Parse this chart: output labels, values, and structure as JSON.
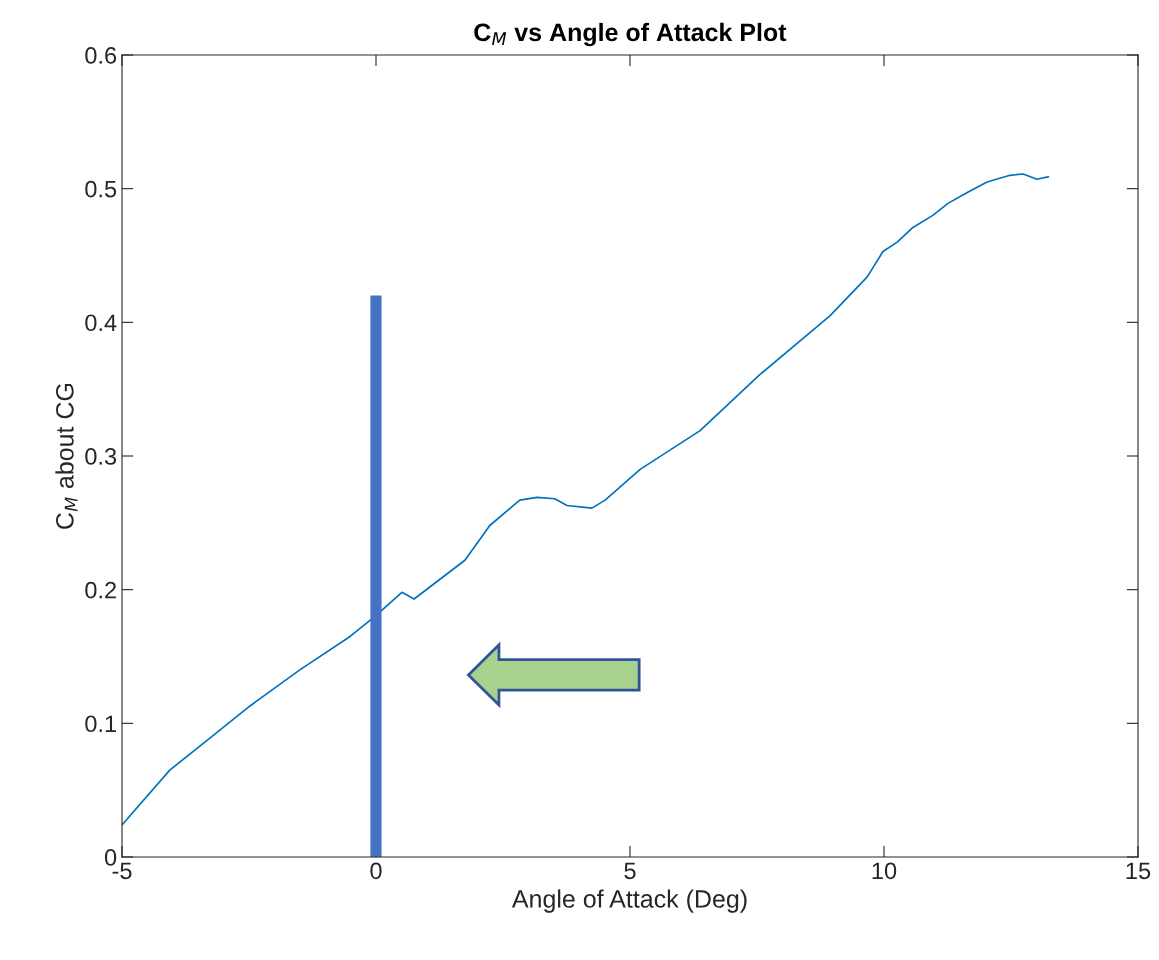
{
  "chart_data": {
    "type": "line",
    "title": "C$_{M}$ vs Angle of Attack Plot",
    "xlabel": "Angle of Attack (Deg)",
    "ylabel": "C$_{M}$ about CG",
    "series": [
      {
        "color": "#0072bd",
        "x": [
          -5,
          -4.06,
          -3.27,
          -2.48,
          -1.5,
          -0.51,
          -0.02,
          0.51,
          0.75,
          1.75,
          2.24,
          2.83,
          3.17,
          3.52,
          3.76,
          4.25,
          4.51,
          5.2,
          6.38,
          7.56,
          8.94,
          9.67,
          9.98,
          10.26,
          10.57,
          10.96,
          11.26,
          11.63,
          12.03,
          12.48,
          12.74,
          13.01,
          13.25
        ],
        "values": [
          0.024,
          0.065,
          0.089,
          0.113,
          0.14,
          0.165,
          0.18,
          0.198,
          0.193,
          0.222,
          0.248,
          0.267,
          0.269,
          0.268,
          0.263,
          0.261,
          0.267,
          0.29,
          0.319,
          0.361,
          0.405,
          0.434,
          0.453,
          0.46,
          0.471,
          0.48,
          0.489,
          0.497,
          0.505,
          0.51,
          0.511,
          0.507,
          0.509
        ]
      },
      {
        "color": "#4472c4",
        "x": [
          0,
          0
        ],
        "values": [
          0,
          0.42
        ]
      }
    ],
    "xlim": [
      -5,
      15
    ],
    "xticks": [
      -5,
      0,
      5,
      10,
      15
    ],
    "ylim": [
      0,
      0.6
    ],
    "yticks": [
      0,
      0.1,
      0.2,
      0.3,
      0.4,
      0.5,
      0.6
    ],
    "grid": false
  }
}
